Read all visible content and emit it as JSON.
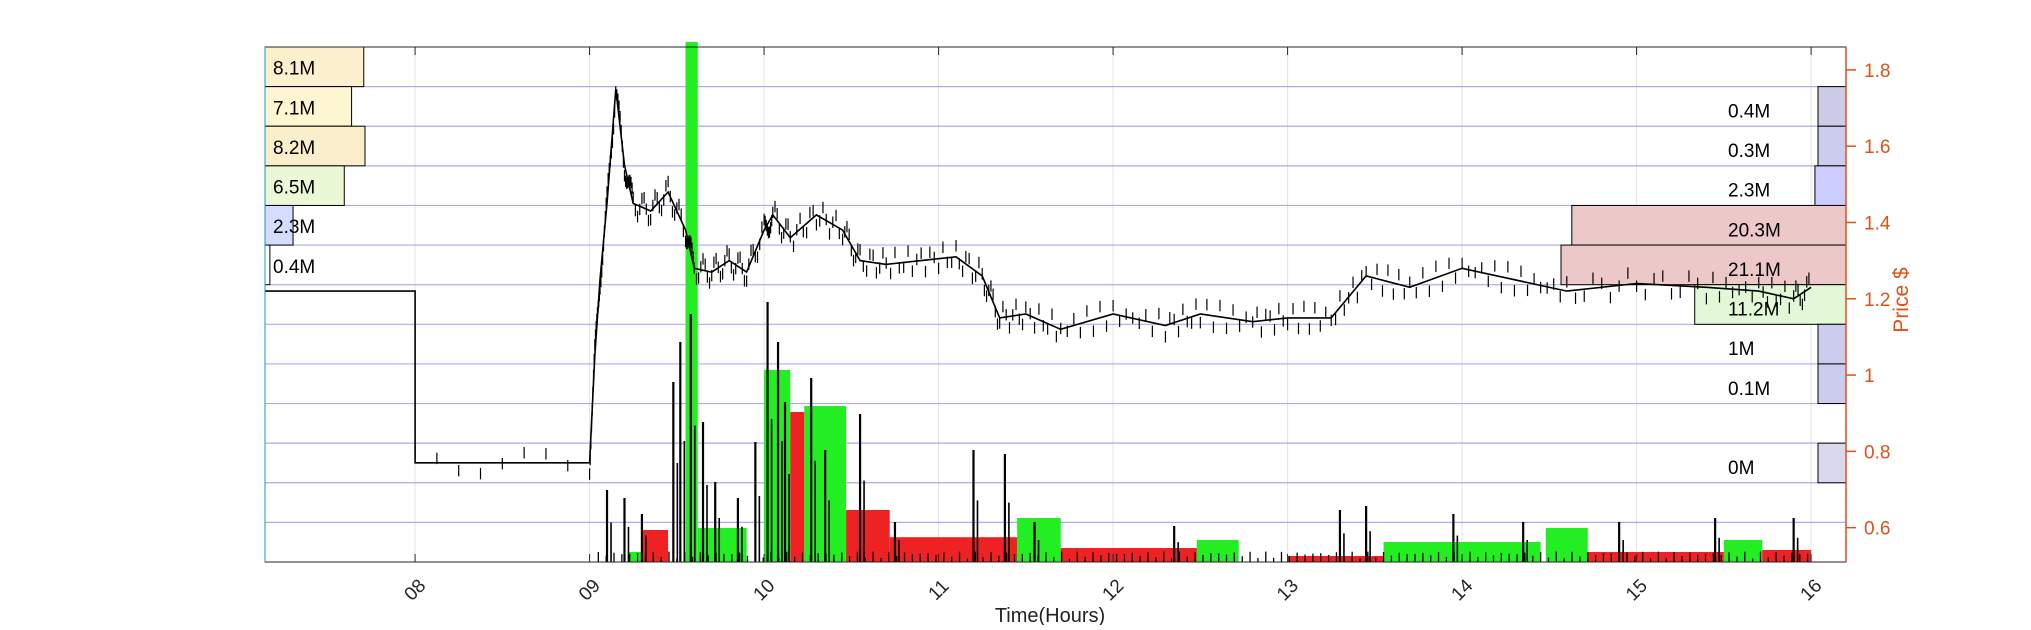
{
  "chart_data": {
    "type": "line",
    "xlabel": "Time(Hours)",
    "ylabel": "Price $",
    "x_tick_labels": [
      "08",
      "09",
      "10",
      "11",
      "12",
      "13",
      "14",
      "15",
      "16"
    ],
    "x_ticks": [
      8,
      9,
      10,
      11,
      12,
      13,
      14,
      15,
      16
    ],
    "xlim": [
      7.14,
      16.2
    ],
    "y_tick_labels": [
      "0.6",
      "0.8",
      "1",
      "1.2",
      "1.4",
      "1.6",
      "1.8"
    ],
    "y_ticks": [
      0.6,
      0.8,
      1.0,
      1.2,
      1.4,
      1.6,
      1.8
    ],
    "ylim": [
      0.51,
      1.86
    ],
    "grid": true,
    "colors": {
      "price": "#000000",
      "axis_right": "#d95319",
      "grid_major": "#aaaaee",
      "up_volume": "#22ee22",
      "down_volume": "#ee2222",
      "volume_spike": "#000000"
    },
    "price_series": [
      {
        "x": 7.14,
        "y": 1.22
      },
      {
        "x": 8.0,
        "y": 1.22
      },
      {
        "x": 8.0,
        "y": 0.77
      },
      {
        "x": 9.0,
        "y": 0.77
      },
      {
        "x": 9.03,
        "y": 1.05
      },
      {
        "x": 9.06,
        "y": 1.25
      },
      {
        "x": 9.1,
        "y": 1.45
      },
      {
        "x": 9.15,
        "y": 1.75
      },
      {
        "x": 9.2,
        "y": 1.55
      },
      {
        "x": 9.25,
        "y": 1.45
      },
      {
        "x": 9.35,
        "y": 1.43
      },
      {
        "x": 9.45,
        "y": 1.48
      },
      {
        "x": 9.55,
        "y": 1.38
      },
      {
        "x": 9.6,
        "y": 1.28
      },
      {
        "x": 9.7,
        "y": 1.27
      },
      {
        "x": 9.8,
        "y": 1.3
      },
      {
        "x": 9.9,
        "y": 1.27
      },
      {
        "x": 10.0,
        "y": 1.38
      },
      {
        "x": 10.05,
        "y": 1.42
      },
      {
        "x": 10.15,
        "y": 1.36
      },
      {
        "x": 10.3,
        "y": 1.42
      },
      {
        "x": 10.45,
        "y": 1.38
      },
      {
        "x": 10.55,
        "y": 1.3
      },
      {
        "x": 10.7,
        "y": 1.29
      },
      {
        "x": 10.9,
        "y": 1.3
      },
      {
        "x": 11.1,
        "y": 1.31
      },
      {
        "x": 11.25,
        "y": 1.26
      },
      {
        "x": 11.35,
        "y": 1.15
      },
      {
        "x": 11.5,
        "y": 1.16
      },
      {
        "x": 11.7,
        "y": 1.12
      },
      {
        "x": 12.0,
        "y": 1.16
      },
      {
        "x": 12.3,
        "y": 1.13
      },
      {
        "x": 12.5,
        "y": 1.16
      },
      {
        "x": 12.8,
        "y": 1.14
      },
      {
        "x": 13.0,
        "y": 1.15
      },
      {
        "x": 13.25,
        "y": 1.15
      },
      {
        "x": 13.45,
        "y": 1.26
      },
      {
        "x": 13.7,
        "y": 1.23
      },
      {
        "x": 14.0,
        "y": 1.28
      },
      {
        "x": 14.3,
        "y": 1.25
      },
      {
        "x": 14.6,
        "y": 1.22
      },
      {
        "x": 15.0,
        "y": 1.24
      },
      {
        "x": 15.4,
        "y": 1.23
      },
      {
        "x": 15.7,
        "y": 1.22
      },
      {
        "x": 15.9,
        "y": 1.2
      },
      {
        "x": 16.0,
        "y": 1.23
      }
    ],
    "volume_profile_left": {
      "labels": [
        "8.1M",
        "7.1M",
        "8.2M",
        "6.5M",
        "2.3M",
        "0.4M"
      ],
      "values": [
        8.1,
        7.1,
        8.2,
        6.5,
        2.3,
        0.4
      ],
      "rows": [
        1,
        2,
        3,
        4,
        5,
        6
      ],
      "colors": [
        "#fdf0cc",
        "#fdf6d0",
        "#fbeecb",
        "#eaf8d6",
        "#d4ddff",
        "#ffffff"
      ]
    },
    "volume_profile_right": {
      "labels": [
        "0.4M",
        "0.3M",
        "2.3M",
        "20.3M",
        "21.1M",
        "11.2M",
        "1M",
        "0.1M",
        "0M"
      ],
      "values": [
        0.4,
        0.3,
        2.3,
        20.3,
        21.1,
        11.2,
        1.0,
        0.1,
        0.0
      ],
      "rows": [
        2,
        3,
        4,
        5,
        6,
        7,
        8,
        9,
        11
      ],
      "colors": [
        "#cccce8",
        "#ccccee",
        "#ccccff",
        "#ecc8c8",
        "#ecc8c8",
        "#e3f8d6",
        "#ccccee",
        "#ccccee",
        "#d8d8ee"
      ]
    },
    "volume_bars_green": [
      {
        "x0": 9.22,
        "x1": 9.3,
        "v": 0.25
      },
      {
        "x0": 9.55,
        "x1": 9.62,
        "v": 13.0
      },
      {
        "x0": 9.62,
        "x1": 9.9,
        "v": 0.85
      },
      {
        "x0": 10.0,
        "x1": 10.15,
        "v": 4.8
      },
      {
        "x0": 10.23,
        "x1": 10.47,
        "v": 3.9
      },
      {
        "x0": 11.45,
        "x1": 11.7,
        "v": 1.1
      },
      {
        "x0": 12.48,
        "x1": 12.72,
        "v": 0.55
      },
      {
        "x0": 13.55,
        "x1": 14.45,
        "v": 0.5
      },
      {
        "x0": 14.48,
        "x1": 14.72,
        "v": 0.85
      },
      {
        "x0": 15.5,
        "x1": 15.72,
        "v": 0.55
      }
    ],
    "volume_bars_red": [
      {
        "x0": 9.3,
        "x1": 9.45,
        "v": 0.8
      },
      {
        "x0": 10.15,
        "x1": 10.23,
        "v": 3.75
      },
      {
        "x0": 10.47,
        "x1": 10.72,
        "v": 1.3
      },
      {
        "x0": 10.72,
        "x1": 11.45,
        "v": 0.62
      },
      {
        "x0": 11.7,
        "x1": 12.48,
        "v": 0.35
      },
      {
        "x0": 13.0,
        "x1": 13.55,
        "v": 0.15
      },
      {
        "x0": 14.72,
        "x1": 15.5,
        "v": 0.25
      },
      {
        "x0": 15.72,
        "x1": 16.0,
        "v": 0.3
      }
    ],
    "volume_spikes": [
      {
        "x": 9.1,
        "v": 1.8
      },
      {
        "x": 9.2,
        "v": 1.6
      },
      {
        "x": 9.3,
        "v": 1.2
      },
      {
        "x": 9.48,
        "v": 4.5
      },
      {
        "x": 9.52,
        "v": 5.5
      },
      {
        "x": 9.58,
        "v": 6.2
      },
      {
        "x": 9.65,
        "v": 3.5
      },
      {
        "x": 9.72,
        "v": 2.0
      },
      {
        "x": 9.85,
        "v": 1.6
      },
      {
        "x": 9.95,
        "v": 3.0
      },
      {
        "x": 10.02,
        "v": 6.5
      },
      {
        "x": 10.08,
        "v": 5.5
      },
      {
        "x": 10.12,
        "v": 4.0
      },
      {
        "x": 10.27,
        "v": 4.6
      },
      {
        "x": 10.35,
        "v": 2.8
      },
      {
        "x": 10.55,
        "v": 3.7
      },
      {
        "x": 10.75,
        "v": 1.0
      },
      {
        "x": 11.2,
        "v": 2.8
      },
      {
        "x": 11.38,
        "v": 2.7
      },
      {
        "x": 11.55,
        "v": 1.0
      },
      {
        "x": 12.35,
        "v": 0.9
      },
      {
        "x": 13.3,
        "v": 1.3
      },
      {
        "x": 13.45,
        "v": 1.4
      },
      {
        "x": 13.95,
        "v": 1.2
      },
      {
        "x": 14.35,
        "v": 1.0
      },
      {
        "x": 14.9,
        "v": 1.0
      },
      {
        "x": 15.45,
        "v": 1.1
      },
      {
        "x": 15.9,
        "v": 1.1
      }
    ],
    "volume_scale_max": 13.0
  }
}
